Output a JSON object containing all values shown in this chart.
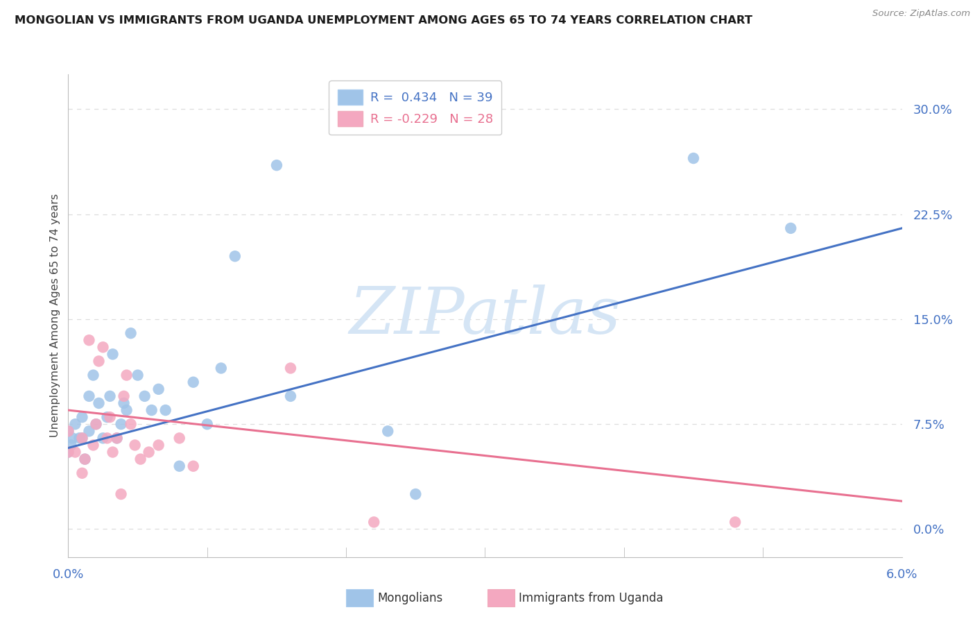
{
  "title": "MONGOLIAN VS IMMIGRANTS FROM UGANDA UNEMPLOYMENT AMONG AGES 65 TO 74 YEARS CORRELATION CHART",
  "source": "Source: ZipAtlas.com",
  "ylabel": "Unemployment Among Ages 65 to 74 years",
  "xlim": [
    0.0,
    6.0
  ],
  "ylim": [
    -2.0,
    32.5
  ],
  "yticks": [
    0.0,
    7.5,
    15.0,
    22.5,
    30.0
  ],
  "ytick_labels": [
    "0.0%",
    "7.5%",
    "15.0%",
    "22.5%",
    "30.0%"
  ],
  "legend_r1": "R =  0.434   N = 39",
  "legend_r2": "R = -0.229   N = 28",
  "legend_label1": "Mongolians",
  "legend_label2": "Immigrants from Uganda",
  "mongolian_x": [
    0.0,
    0.0,
    0.02,
    0.03,
    0.05,
    0.08,
    0.1,
    0.12,
    0.15,
    0.18,
    0.2,
    0.22,
    0.25,
    0.28,
    0.3,
    0.32,
    0.35,
    0.38,
    0.4,
    0.42,
    0.45,
    0.5,
    0.55,
    0.6,
    0.65,
    0.7,
    0.8,
    0.9,
    1.0,
    1.1,
    1.2,
    1.5,
    1.6,
    2.3,
    2.5,
    4.5,
    5.2,
    0.1,
    0.15
  ],
  "mongolian_y": [
    5.5,
    7.0,
    6.0,
    6.5,
    7.5,
    6.5,
    8.0,
    5.0,
    7.0,
    11.0,
    7.5,
    9.0,
    6.5,
    8.0,
    9.5,
    12.5,
    6.5,
    7.5,
    9.0,
    8.5,
    14.0,
    11.0,
    9.5,
    8.5,
    10.0,
    8.5,
    4.5,
    10.5,
    7.5,
    11.5,
    19.5,
    26.0,
    9.5,
    7.0,
    2.5,
    26.5,
    21.5,
    6.5,
    9.5
  ],
  "uganda_x": [
    0.0,
    0.0,
    0.05,
    0.1,
    0.12,
    0.15,
    0.2,
    0.22,
    0.25,
    0.28,
    0.3,
    0.32,
    0.35,
    0.4,
    0.45,
    0.48,
    0.52,
    0.58,
    0.65,
    0.8,
    0.9,
    1.6,
    2.2,
    4.8,
    0.1,
    0.38,
    0.42,
    0.18
  ],
  "uganda_y": [
    5.5,
    7.0,
    5.5,
    6.5,
    5.0,
    13.5,
    7.5,
    12.0,
    13.0,
    6.5,
    8.0,
    5.5,
    6.5,
    9.5,
    7.5,
    6.0,
    5.0,
    5.5,
    6.0,
    6.5,
    4.5,
    11.5,
    0.5,
    0.5,
    4.0,
    2.5,
    11.0,
    6.0
  ],
  "mongolian_line_x": [
    0.0,
    6.0
  ],
  "mongolian_line_y": [
    5.8,
    21.5
  ],
  "uganda_line_x": [
    0.0,
    6.0
  ],
  "uganda_line_y": [
    8.5,
    2.0
  ],
  "color_mongolian_scatter": "#a0c4e8",
  "color_uganda_scatter": "#f4a8c0",
  "color_mongolian_line": "#4472c4",
  "color_uganda_line": "#e87090",
  "color_grid": "#dddddd",
  "color_watermark": "#d5e5f5",
  "watermark_text": "ZIPatlas",
  "background": "#ffffff"
}
